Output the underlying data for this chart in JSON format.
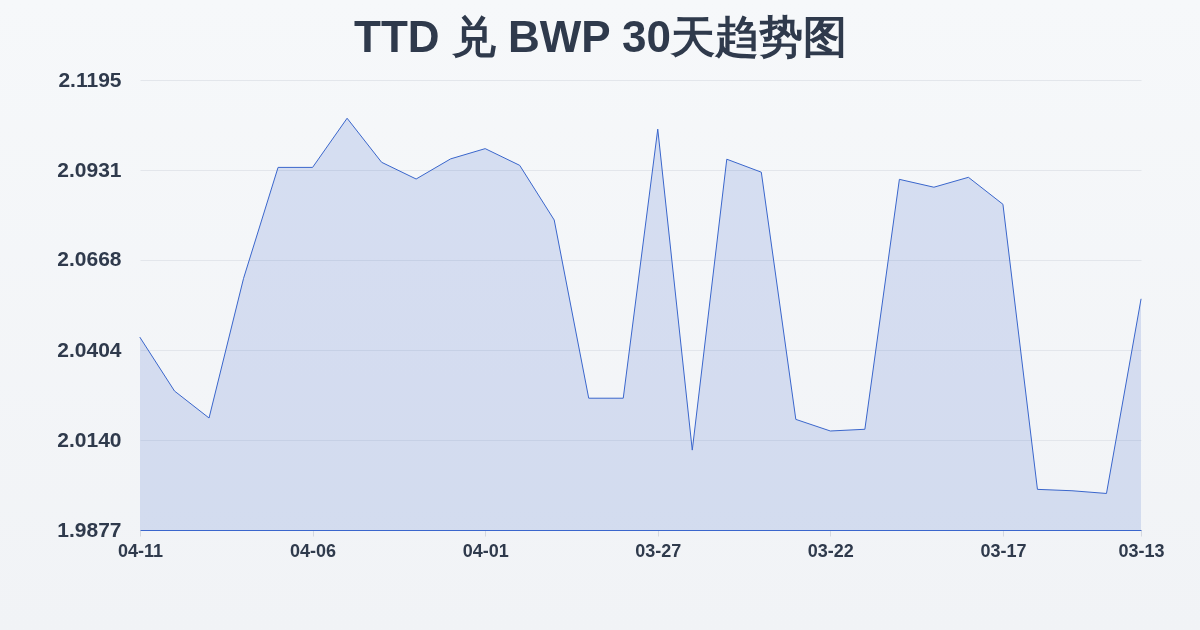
{
  "chart_data": {
    "type": "area",
    "title": "TTD 兑 BWP 30天趋势图",
    "categories": [
      "04-11",
      null,
      null,
      null,
      null,
      "04-06",
      null,
      null,
      null,
      null,
      "04-01",
      null,
      null,
      null,
      null,
      "03-27",
      null,
      null,
      null,
      null,
      "03-22",
      null,
      null,
      null,
      null,
      "03-17",
      null,
      null,
      null,
      "03-13"
    ],
    "values": [
      2.0441,
      2.0284,
      2.0205,
      2.0614,
      2.0939,
      2.0939,
      2.1083,
      2.0954,
      2.0905,
      2.0964,
      2.0994,
      2.0945,
      2.0785,
      2.0263,
      2.0263,
      2.1051,
      2.0111,
      2.0963,
      2.0925,
      2.0201,
      2.0167,
      2.0172,
      2.0904,
      2.0881,
      2.091,
      2.0831,
      1.9996,
      1.9992,
      1.9984,
      2.0553
    ],
    "color": "#3a66cc",
    "ylim": [
      1.9877,
      2.1195
    ],
    "yticks": [
      1.9877,
      {
        "value": 2.014,
        "label": "2.0140"
      },
      2.0404,
      2.0668,
      2.0931,
      2.1195
    ],
    "grid": "y"
  }
}
